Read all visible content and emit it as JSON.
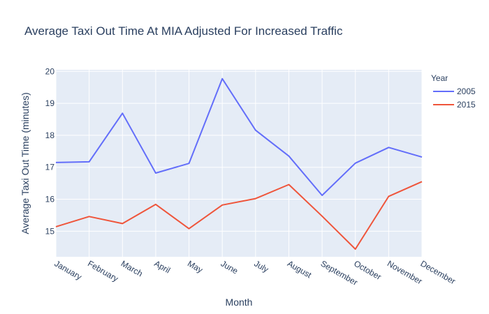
{
  "chart_data": {
    "type": "line",
    "title": "Average Taxi Out Time At MIA Adjusted For Increased Traffic",
    "xlabel": "Month",
    "ylabel": "Average Taxi Out Time (minutes)",
    "categories": [
      "January",
      "February",
      "March",
      "April",
      "May",
      "June",
      "July",
      "August",
      "September",
      "October",
      "November",
      "December"
    ],
    "ylim": [
      14.2,
      20.05
    ],
    "yticks": [
      15,
      16,
      17,
      18,
      19,
      20
    ],
    "grid": true,
    "legend": {
      "title": "Year",
      "position": "top-right"
    },
    "series": [
      {
        "name": "2005",
        "color": "#636efa",
        "values": [
          17.15,
          17.17,
          18.69,
          16.82,
          17.12,
          19.77,
          18.16,
          17.35,
          16.12,
          17.13,
          17.62,
          17.32
        ]
      },
      {
        "name": "2015",
        "color": "#ef553b",
        "values": [
          15.14,
          15.46,
          15.24,
          15.84,
          15.08,
          15.82,
          16.02,
          16.46,
          15.47,
          14.44,
          16.09,
          16.55
        ]
      }
    ]
  }
}
